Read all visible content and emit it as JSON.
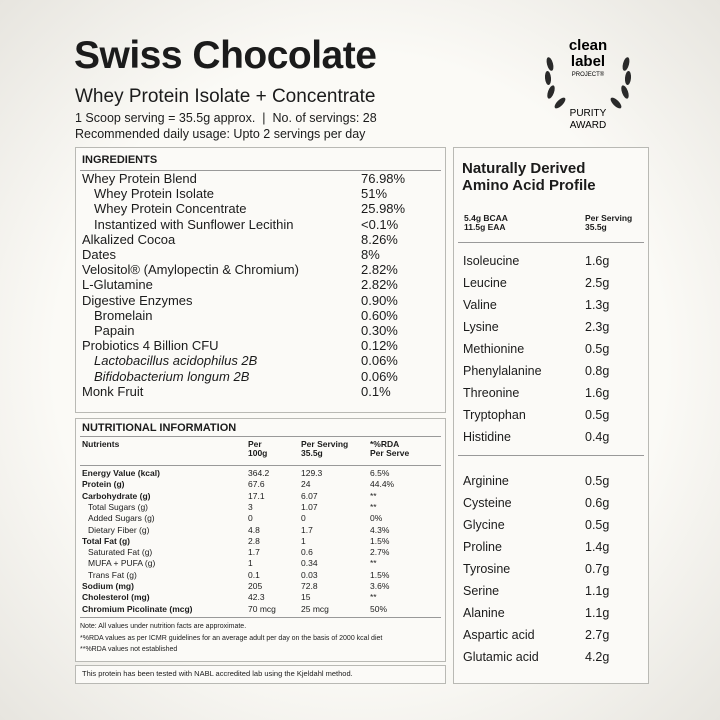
{
  "header": {
    "title": "Swiss Chocolate",
    "subtitle": "Whey Protein Isolate + Concentrate",
    "serving": "1 Scoop serving = 35.5g approx.  |  No. of servings: 28",
    "usage": "Recommended daily usage: Upto 2 servings per day"
  },
  "badge": {
    "line1": "clean",
    "line2": "label",
    "line3": "PROJECT®",
    "line4": "PURITY",
    "line5": "AWARD"
  },
  "ingredients": {
    "heading": "INGREDIENTS",
    "items": [
      {
        "name": "Whey Protein Blend",
        "value": "76.98%",
        "sub": [
          {
            "name": "Whey Protein Isolate",
            "value": "51%"
          },
          {
            "name": "Whey Protein Concentrate",
            "value": "25.98%"
          },
          {
            "name": "Instantized with Sunflower Lecithin",
            "value": "<0.1%"
          }
        ]
      },
      {
        "name": "Alkalized Cocoa",
        "value": "8.26%"
      },
      {
        "name": "Dates",
        "value": "8%"
      },
      {
        "name": "Velositol® (Amylopectin & Chromium)",
        "value": "2.82%"
      },
      {
        "name": "L-Glutamine",
        "value": "2.82%"
      },
      {
        "name": "Digestive Enzymes",
        "value": "0.90%",
        "sub": [
          {
            "name": "Bromelain",
            "value": "0.60%"
          },
          {
            "name": "Papain",
            "value": "0.30%"
          }
        ]
      },
      {
        "name": "Probiotics 4 Billion CFU",
        "value": "0.12%",
        "sub": [
          {
            "name": "Lactobacillus acidophilus 2B",
            "value": "0.06%",
            "italic": true
          },
          {
            "name": "Bifidobacterium longum 2B",
            "value": "0.06%",
            "italic": true
          }
        ]
      },
      {
        "name": "Monk Fruit",
        "value": "0.1%"
      }
    ]
  },
  "nutrition": {
    "heading": "NUTRITIONAL INFORMATION",
    "columns": [
      "Nutrients",
      "Per\n100g",
      "Per Serving\n35.5g",
      "*%RDA\nPer Serve"
    ],
    "rows": [
      {
        "name": "Energy Value (kcal)",
        "per100": "364.2",
        "serving": "129.3",
        "rda": "6.5%",
        "bold": true
      },
      {
        "name": "Protein (g)",
        "per100": "67.6",
        "serving": "24",
        "rda": "44.4%",
        "bold": true
      },
      {
        "name": "Carbohydrate (g)",
        "per100": "17.1",
        "serving": "6.07",
        "rda": "**",
        "bold": true
      },
      {
        "name": "Total Sugars (g)",
        "per100": "3",
        "serving": "1.07",
        "rda": "**"
      },
      {
        "name": "Added Sugars (g)",
        "per100": "0",
        "serving": "0",
        "rda": "0%"
      },
      {
        "name": "Dietary Fiber (g)",
        "per100": "4.8",
        "serving": "1.7",
        "rda": "4.3%"
      },
      {
        "name": "Total Fat (g)",
        "per100": "2.8",
        "serving": "1",
        "rda": "1.5%",
        "bold": true
      },
      {
        "name": "Saturated Fat (g)",
        "per100": "1.7",
        "serving": "0.6",
        "rda": "2.7%"
      },
      {
        "name": "MUFA + PUFA (g)",
        "per100": "1",
        "serving": "0.34",
        "rda": "**"
      },
      {
        "name": "Trans Fat (g)",
        "per100": "0.1",
        "serving": "0.03",
        "rda": "1.5%"
      },
      {
        "name": "Sodium (mg)",
        "per100": "205",
        "serving": "72.8",
        "rda": "3.6%",
        "bold": true
      },
      {
        "name": "Cholesterol (mg)",
        "per100": "42.3",
        "serving": "15",
        "rda": "**",
        "bold": true
      },
      {
        "name": "Chromium Picolinate (mcg)",
        "per100": "70 mcg",
        "serving": "25 mcg",
        "rda": "50%",
        "bold": true
      }
    ],
    "notes": [
      "Note: All values under nutrition facts are approximate.",
      "*%RDA values as per ICMR guidelines for an average adult per day on the basis of 2000 kcal diet",
      "**%RDA values not established"
    ]
  },
  "footer": "This protein has been tested with NABL accredited lab using the Kjeldahl method.",
  "amino": {
    "title": "Naturally Derived\nAmino Acid Profile",
    "left_header": "5.4g BCAA\n11.5g EAA",
    "right_header": "Per Serving\n35.5g",
    "groups": [
      [
        {
          "name": "Isoleucine",
          "value": "1.6g"
        },
        {
          "name": "Leucine",
          "value": "2.5g"
        },
        {
          "name": "Valine",
          "value": "1.3g"
        },
        {
          "name": "Lysine",
          "value": "2.3g"
        },
        {
          "name": "Methionine",
          "value": "0.5g"
        },
        {
          "name": "Phenylalanine",
          "value": "0.8g"
        },
        {
          "name": "Threonine",
          "value": "1.6g"
        },
        {
          "name": "Tryptophan",
          "value": "0.5g"
        },
        {
          "name": "Histidine",
          "value": "0.4g"
        }
      ],
      [
        {
          "name": "Arginine",
          "value": "0.5g"
        },
        {
          "name": "Cysteine",
          "value": "0.6g"
        },
        {
          "name": "Glycine",
          "value": "0.5g"
        },
        {
          "name": "Proline",
          "value": "1.4g"
        },
        {
          "name": "Tyrosine",
          "value": "0.7g"
        },
        {
          "name": "Serine",
          "value": "1.1g"
        },
        {
          "name": "Alanine",
          "value": "1.1g"
        },
        {
          "name": "Aspartic acid",
          "value": "2.7g"
        },
        {
          "name": "Glutamic acid",
          "value": "4.2g"
        }
      ]
    ]
  }
}
